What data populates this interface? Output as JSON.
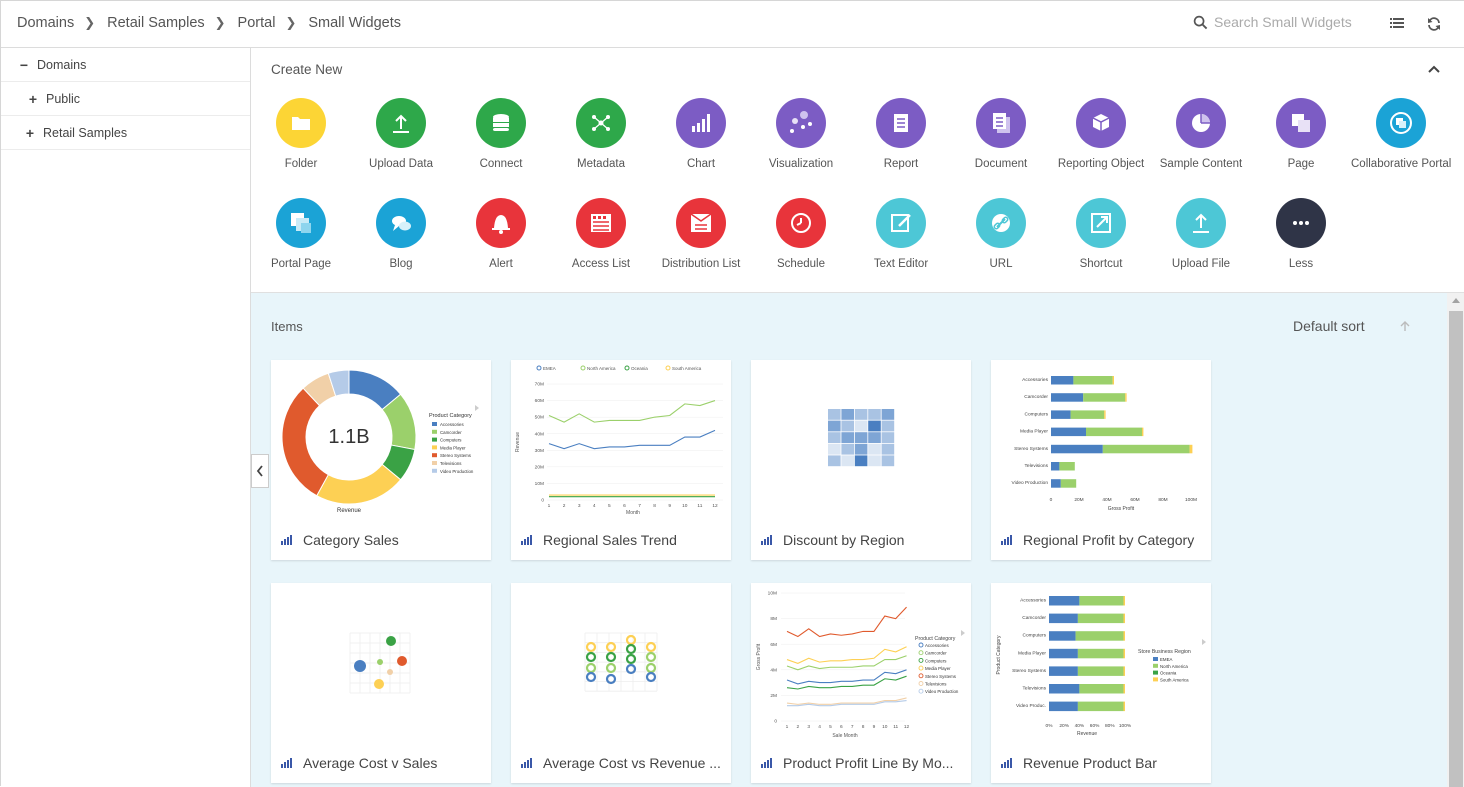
{
  "breadcrumb": [
    "Domains",
    "Retail Samples",
    "Portal",
    "Small Widgets"
  ],
  "search": {
    "placeholder": "Search Small Widgets"
  },
  "sidebar": {
    "items": [
      {
        "label": "Domains",
        "sign": "−"
      },
      {
        "label": "Public",
        "sign": "+"
      },
      {
        "label": "Retail Samples",
        "sign": "+"
      }
    ]
  },
  "create_new": {
    "title": "Create New",
    "tiles": [
      {
        "label": "Folder",
        "color": "#fcd535",
        "icon": "folder-icon"
      },
      {
        "label": "Upload Data",
        "color": "#2ea84a",
        "icon": "upload-icon"
      },
      {
        "label": "Connect",
        "color": "#2ea84a",
        "icon": "database-icon"
      },
      {
        "label": "Metadata",
        "color": "#2ea84a",
        "icon": "metadata-icon"
      },
      {
        "label": "Chart",
        "color": "#7c5cc4",
        "icon": "chart-icon"
      },
      {
        "label": "Visualization",
        "color": "#7c5cc4",
        "icon": "visualization-icon"
      },
      {
        "label": "Report",
        "color": "#7c5cc4",
        "icon": "report-icon"
      },
      {
        "label": "Document",
        "color": "#7c5cc4",
        "icon": "document-icon"
      },
      {
        "label": "Reporting Object",
        "color": "#7c5cc4",
        "icon": "cube-icon"
      },
      {
        "label": "Sample Content",
        "color": "#7c5cc4",
        "icon": "pie-icon"
      },
      {
        "label": "Page",
        "color": "#7c5cc4",
        "icon": "page-icon"
      },
      {
        "label": "Collaborative Portal",
        "color": "#1ba3d6",
        "icon": "portal-icon"
      },
      {
        "label": "Portal Page",
        "color": "#1ba3d6",
        "icon": "portal-page-icon"
      },
      {
        "label": "Blog",
        "color": "#1ba3d6",
        "icon": "blog-icon"
      },
      {
        "label": "Alert",
        "color": "#e8343b",
        "icon": "bell-icon"
      },
      {
        "label": "Access List",
        "color": "#e8343b",
        "icon": "access-list-icon"
      },
      {
        "label": "Distribution List",
        "color": "#e8343b",
        "icon": "distribution-list-icon"
      },
      {
        "label": "Schedule",
        "color": "#e8343b",
        "icon": "clock-icon"
      },
      {
        "label": "Text Editor",
        "color": "#4dc7d6",
        "icon": "edit-icon"
      },
      {
        "label": "URL",
        "color": "#4dc7d6",
        "icon": "link-icon"
      },
      {
        "label": "Shortcut",
        "color": "#4dc7d6",
        "icon": "shortcut-icon"
      },
      {
        "label": "Upload File",
        "color": "#4dc7d6",
        "icon": "upload-file-icon"
      },
      {
        "label": "Less",
        "color": "#2f3447",
        "icon": "more-icon"
      }
    ]
  },
  "items": {
    "title": "Items",
    "sort_label": "Default sort",
    "cards": [
      {
        "title": "Category Sales"
      },
      {
        "title": "Regional Sales Trend"
      },
      {
        "title": "Discount by Region"
      },
      {
        "title": "Regional Profit by Category"
      },
      {
        "title": "Average Cost v Sales"
      },
      {
        "title": "Average Cost vs Revenue ..."
      },
      {
        "title": "Product Profit Line By Mo..."
      },
      {
        "title": "Revenue Product Bar"
      }
    ]
  },
  "thumbs": {
    "donut": {
      "center": "1.1B",
      "legend_title": "Product Category",
      "xlabel": "Revenue",
      "legend": [
        "Accessories",
        "Camcorder",
        "Computers",
        "Media Player",
        "Stereo Systems",
        "Televisions",
        "Video Production"
      ]
    },
    "trend": {
      "legend": [
        "EMEA",
        "North America",
        "Oceania",
        "South America"
      ],
      "ylabel": "Revenue",
      "xlabel": "Month",
      "yticks": [
        "70M",
        "60M",
        "50M",
        "40M",
        "30M",
        "20M",
        "10M",
        "0"
      ],
      "xticks": [
        "1",
        "2",
        "3",
        "4",
        "5",
        "6",
        "7",
        "8",
        "9",
        "10",
        "11",
        "12"
      ]
    },
    "hbar": {
      "categories": [
        "Accessories",
        "Camcorder",
        "Computers",
        "Media Player",
        "Stereo Systems",
        "Televisions",
        "Video Production"
      ],
      "xticks": [
        "0",
        "20M",
        "40M",
        "60M",
        "80M",
        "100M"
      ],
      "xlabel": "Gross Profit"
    },
    "line2": {
      "ylabel": "Gross Profit",
      "xlabel": "Sale Month",
      "legend_title": "Product Category",
      "yticks": [
        "10M",
        "8M",
        "6M",
        "4M",
        "2M",
        "0"
      ],
      "xticks": [
        "1",
        "2",
        "3",
        "4",
        "5",
        "6",
        "7",
        "8",
        "9",
        "10",
        "11",
        "12"
      ],
      "legend": [
        "Accessories",
        "Camcorder",
        "Computers",
        "Media Player",
        "Stereo Systems",
        "Televisions",
        "Video Production"
      ]
    },
    "stack": {
      "categories": [
        "Accessories",
        "Camcorder",
        "Computers",
        "Media Player",
        "Stereo Systems",
        "Televisions",
        "Video Produc."
      ],
      "xticks": [
        "0%",
        "20%",
        "40%",
        "60%",
        "80%",
        "100%"
      ],
      "xlabel": "Revenue",
      "ylabel": "Product Category",
      "legend_title": "Store Business Region",
      "legend": [
        "EMEA",
        "North America",
        "Oceania",
        "South America"
      ]
    }
  },
  "colors": {
    "accent_bg": "#e8f5fa",
    "blue": "#4a7fc1",
    "green": "#9bd06b",
    "dark_green": "#3aa245",
    "yellow": "#fdd054",
    "red": "#e05a2d"
  }
}
